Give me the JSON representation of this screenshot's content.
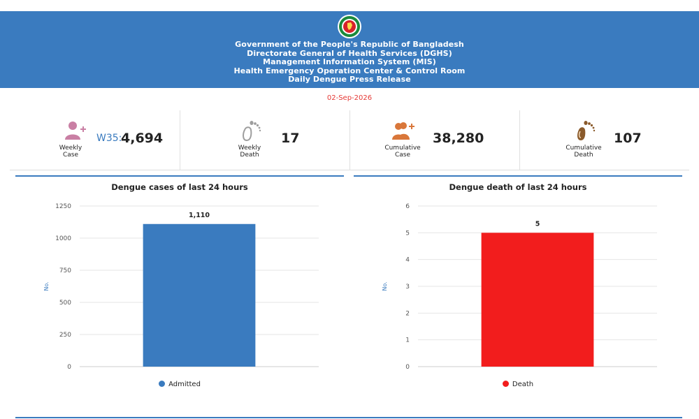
{
  "header": {
    "lines": [
      "Government of the People's Republic of Bangladesh",
      "Directorate General of Health Services (DGHS)",
      "Management Information System (MIS)",
      "Health Emergency Operation Center & Control Room",
      "Daily Dengue Press Release"
    ],
    "emblem_icon": "government-emblem-icon"
  },
  "report_date": "02-Sep-2026",
  "stats": [
    {
      "label_lines": [
        "Weekly",
        "Case"
      ],
      "prefix": "W35:",
      "value": "4,694",
      "icon": "person-add-icon",
      "icon_color": "#c97fa4"
    },
    {
      "label_lines": [
        "Weekly",
        "Death"
      ],
      "prefix": "",
      "value": "17",
      "icon": "footprint-icon",
      "icon_color": "#9e9e9e"
    },
    {
      "label_lines": [
        "Cumulative",
        "Case"
      ],
      "prefix": "",
      "value": "38,280",
      "icon": "people-add-icon",
      "icon_color": "#d9773a"
    },
    {
      "label_lines": [
        "Cumulative",
        "Death"
      ],
      "prefix": "",
      "value": "107",
      "icon": "footprint-icon",
      "icon_color": "#8a5a2b"
    }
  ],
  "colors": {
    "header_bg": "#3a7bbf",
    "accent": "#3a7bbf",
    "date_red": "#e53935",
    "death_red": "#f21d1d"
  },
  "chart_data": [
    {
      "type": "bar",
      "title": "Dengue cases of last 24 hours",
      "ylabel": "No.",
      "xlabel": "",
      "categories": [
        ""
      ],
      "series": [
        {
          "name": "Admitted",
          "values": [
            1110
          ],
          "color": "#3a7bbf"
        }
      ],
      "data_labels": [
        "1,110"
      ],
      "ylim": [
        0,
        1250
      ],
      "yticks": [
        0,
        250,
        500,
        750,
        1000,
        1250
      ],
      "ytick_labels": [
        "0",
        "250",
        "500",
        "750",
        "1000",
        "1250"
      ],
      "grid": true,
      "legend": "bottom"
    },
    {
      "type": "bar",
      "title": "Dengue death of last 24 hours",
      "ylabel": "No.",
      "xlabel": "",
      "categories": [
        ""
      ],
      "series": [
        {
          "name": "Death",
          "values": [
            5
          ],
          "color": "#f21d1d"
        }
      ],
      "data_labels": [
        "5"
      ],
      "ylim": [
        0,
        6
      ],
      "yticks": [
        0,
        1,
        2,
        3,
        4,
        5,
        6
      ],
      "ytick_labels": [
        "0",
        "1",
        "2",
        "3",
        "4",
        "5",
        "6"
      ],
      "grid": true,
      "legend": "bottom"
    }
  ]
}
